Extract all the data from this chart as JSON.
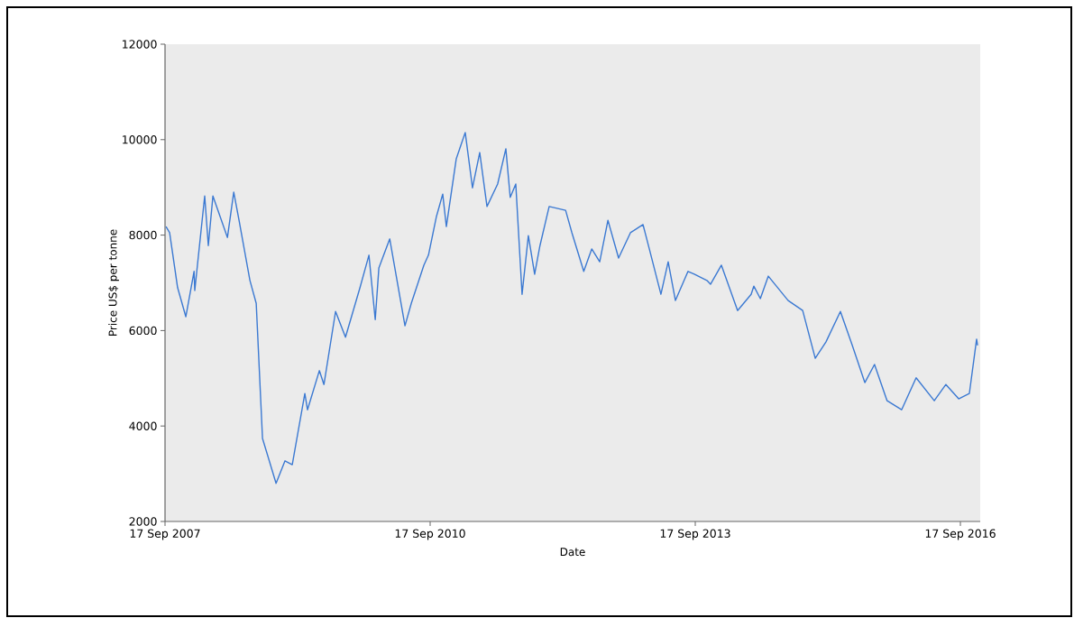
{
  "chart_data": {
    "type": "line",
    "xlabel": "Date",
    "ylabel": "Price US$ per tonne",
    "xlim": [
      "2007-09-17",
      "2016-12-08"
    ],
    "xticks": [
      {
        "value": "2007-09-17",
        "label": "17 Sep 2007"
      },
      {
        "value": "2010-09-17",
        "label": "17 Sep 2010"
      },
      {
        "value": "2013-09-17",
        "label": "17 Sep 2013"
      },
      {
        "value": "2016-09-17",
        "label": "17 Sep 2016"
      }
    ],
    "ylim": [
      2000,
      12000
    ],
    "yticks": [
      2000,
      4000,
      6000,
      8000,
      10000,
      12000
    ],
    "x": [
      "2007-09-21",
      "2007-10-06",
      "2007-11-08",
      "2007-12-12",
      "2008-01-15",
      "2008-01-18",
      "2008-02-28",
      "2008-03-14",
      "2008-04-02",
      "2008-06-01",
      "2008-06-27",
      "2008-07-19",
      "2008-09-02",
      "2008-09-28",
      "2008-10-24",
      "2008-12-19",
      "2009-01-25",
      "2009-02-24",
      "2009-04-17",
      "2009-04-28",
      "2009-06-16",
      "2009-07-05",
      "2009-08-22",
      "2009-10-02",
      "2009-12-01",
      "2010-01-07",
      "2010-02-02",
      "2010-02-17",
      "2010-04-03",
      "2010-06-05",
      "2010-07-01",
      "2010-08-22",
      "2010-09-10",
      "2010-10-13",
      "2010-11-08",
      "2010-11-23",
      "2011-01-03",
      "2011-02-09",
      "2011-03-11",
      "2011-04-10",
      "2011-05-10",
      "2011-06-23",
      "2011-07-27",
      "2011-08-14",
      "2011-09-06",
      "2011-10-02",
      "2011-10-28",
      "2011-11-23",
      "2011-12-15",
      "2012-01-22",
      "2012-03-30",
      "2012-04-25",
      "2012-06-13",
      "2012-07-16",
      "2012-08-18",
      "2012-09-21",
      "2012-11-04",
      "2012-12-23",
      "2013-02-13",
      "2013-03-11",
      "2013-04-28",
      "2013-05-28",
      "2013-06-27",
      "2013-08-18",
      "2013-09-13",
      "2013-11-04",
      "2013-11-19",
      "2014-01-03",
      "2014-03-11",
      "2014-05-06",
      "2014-05-17",
      "2014-06-13",
      "2014-07-16",
      "2014-10-06",
      "2014-12-05",
      "2015-01-26",
      "2015-03-11",
      "2015-05-10",
      "2015-06-28",
      "2015-08-19",
      "2015-09-28",
      "2015-11-19",
      "2016-01-18",
      "2016-03-18",
      "2016-06-01",
      "2016-07-19",
      "2016-09-10",
      "2016-10-24",
      "2016-11-23",
      "2016-11-27"
    ],
    "series": [
      {
        "color": "#3b79d2",
        "values": [
          8180,
          8050,
          6900,
          6290,
          7240,
          6840,
          8820,
          7780,
          8820,
          7950,
          8900,
          8310,
          7050,
          6570,
          3740,
          2800,
          3270,
          3190,
          4680,
          4340,
          5160,
          4870,
          6400,
          5860,
          6900,
          7580,
          6230,
          7310,
          7920,
          6100,
          6570,
          7370,
          7580,
          8390,
          8860,
          8180,
          9600,
          10150,
          8990,
          9730,
          8600,
          9070,
          9810,
          8790,
          9070,
          6760,
          7990,
          7180,
          7780,
          8600,
          8520,
          8050,
          7240,
          7710,
          7440,
          8310,
          7520,
          8050,
          8220,
          7710,
          6760,
          7440,
          6630,
          7240,
          7180,
          7050,
          6970,
          7370,
          6420,
          6760,
          6930,
          6670,
          7140,
          6630,
          6420,
          5420,
          5760,
          6400,
          5690,
          4910,
          5290,
          4530,
          4340,
          5010,
          4530,
          4870,
          4570,
          4680,
          5820,
          5690
        ]
      }
    ]
  }
}
